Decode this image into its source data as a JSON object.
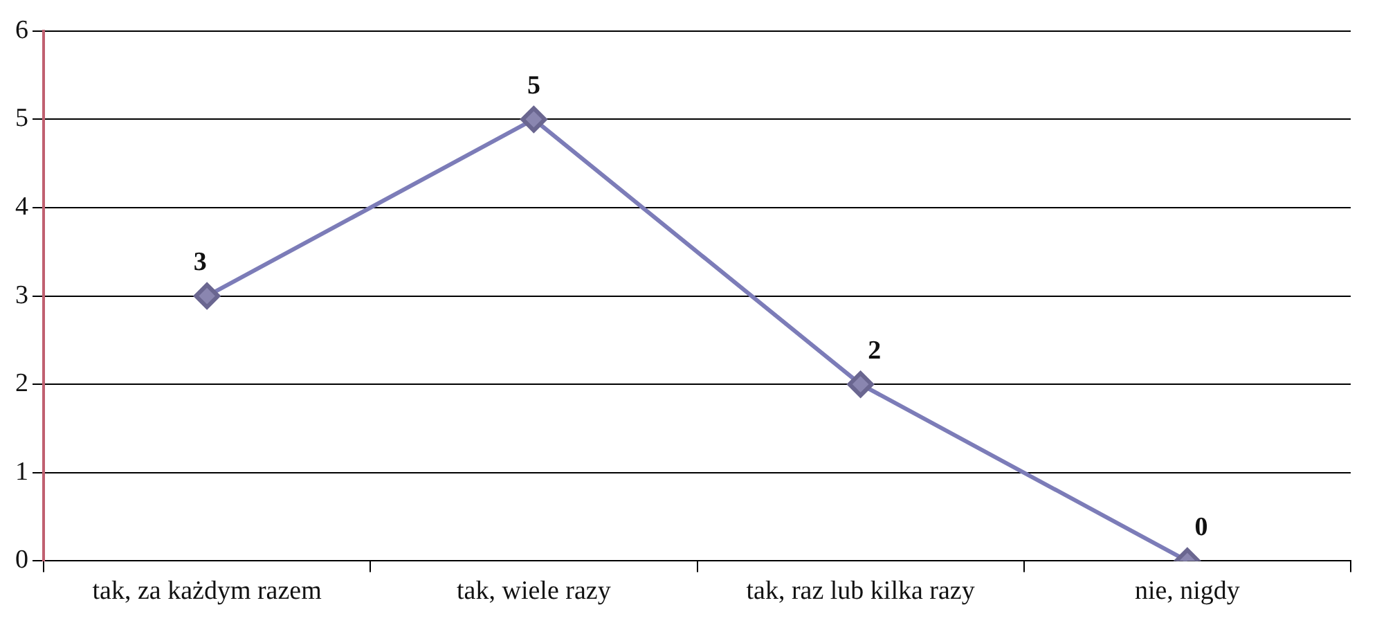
{
  "chart_data": {
    "type": "line",
    "categories": [
      "tak, za każdym razem",
      "tak, wiele razy",
      "tak, raz lub kilka razy",
      "nie, nigdy"
    ],
    "values": [
      3,
      5,
      2,
      0
    ],
    "color": "#7c7cb8",
    "ylim": [
      0,
      6
    ],
    "yticks": [
      0,
      1,
      2,
      3,
      4,
      5,
      6
    ],
    "grid": "y",
    "marker": "diamond",
    "line_style": "solid",
    "data_labels": true
  }
}
